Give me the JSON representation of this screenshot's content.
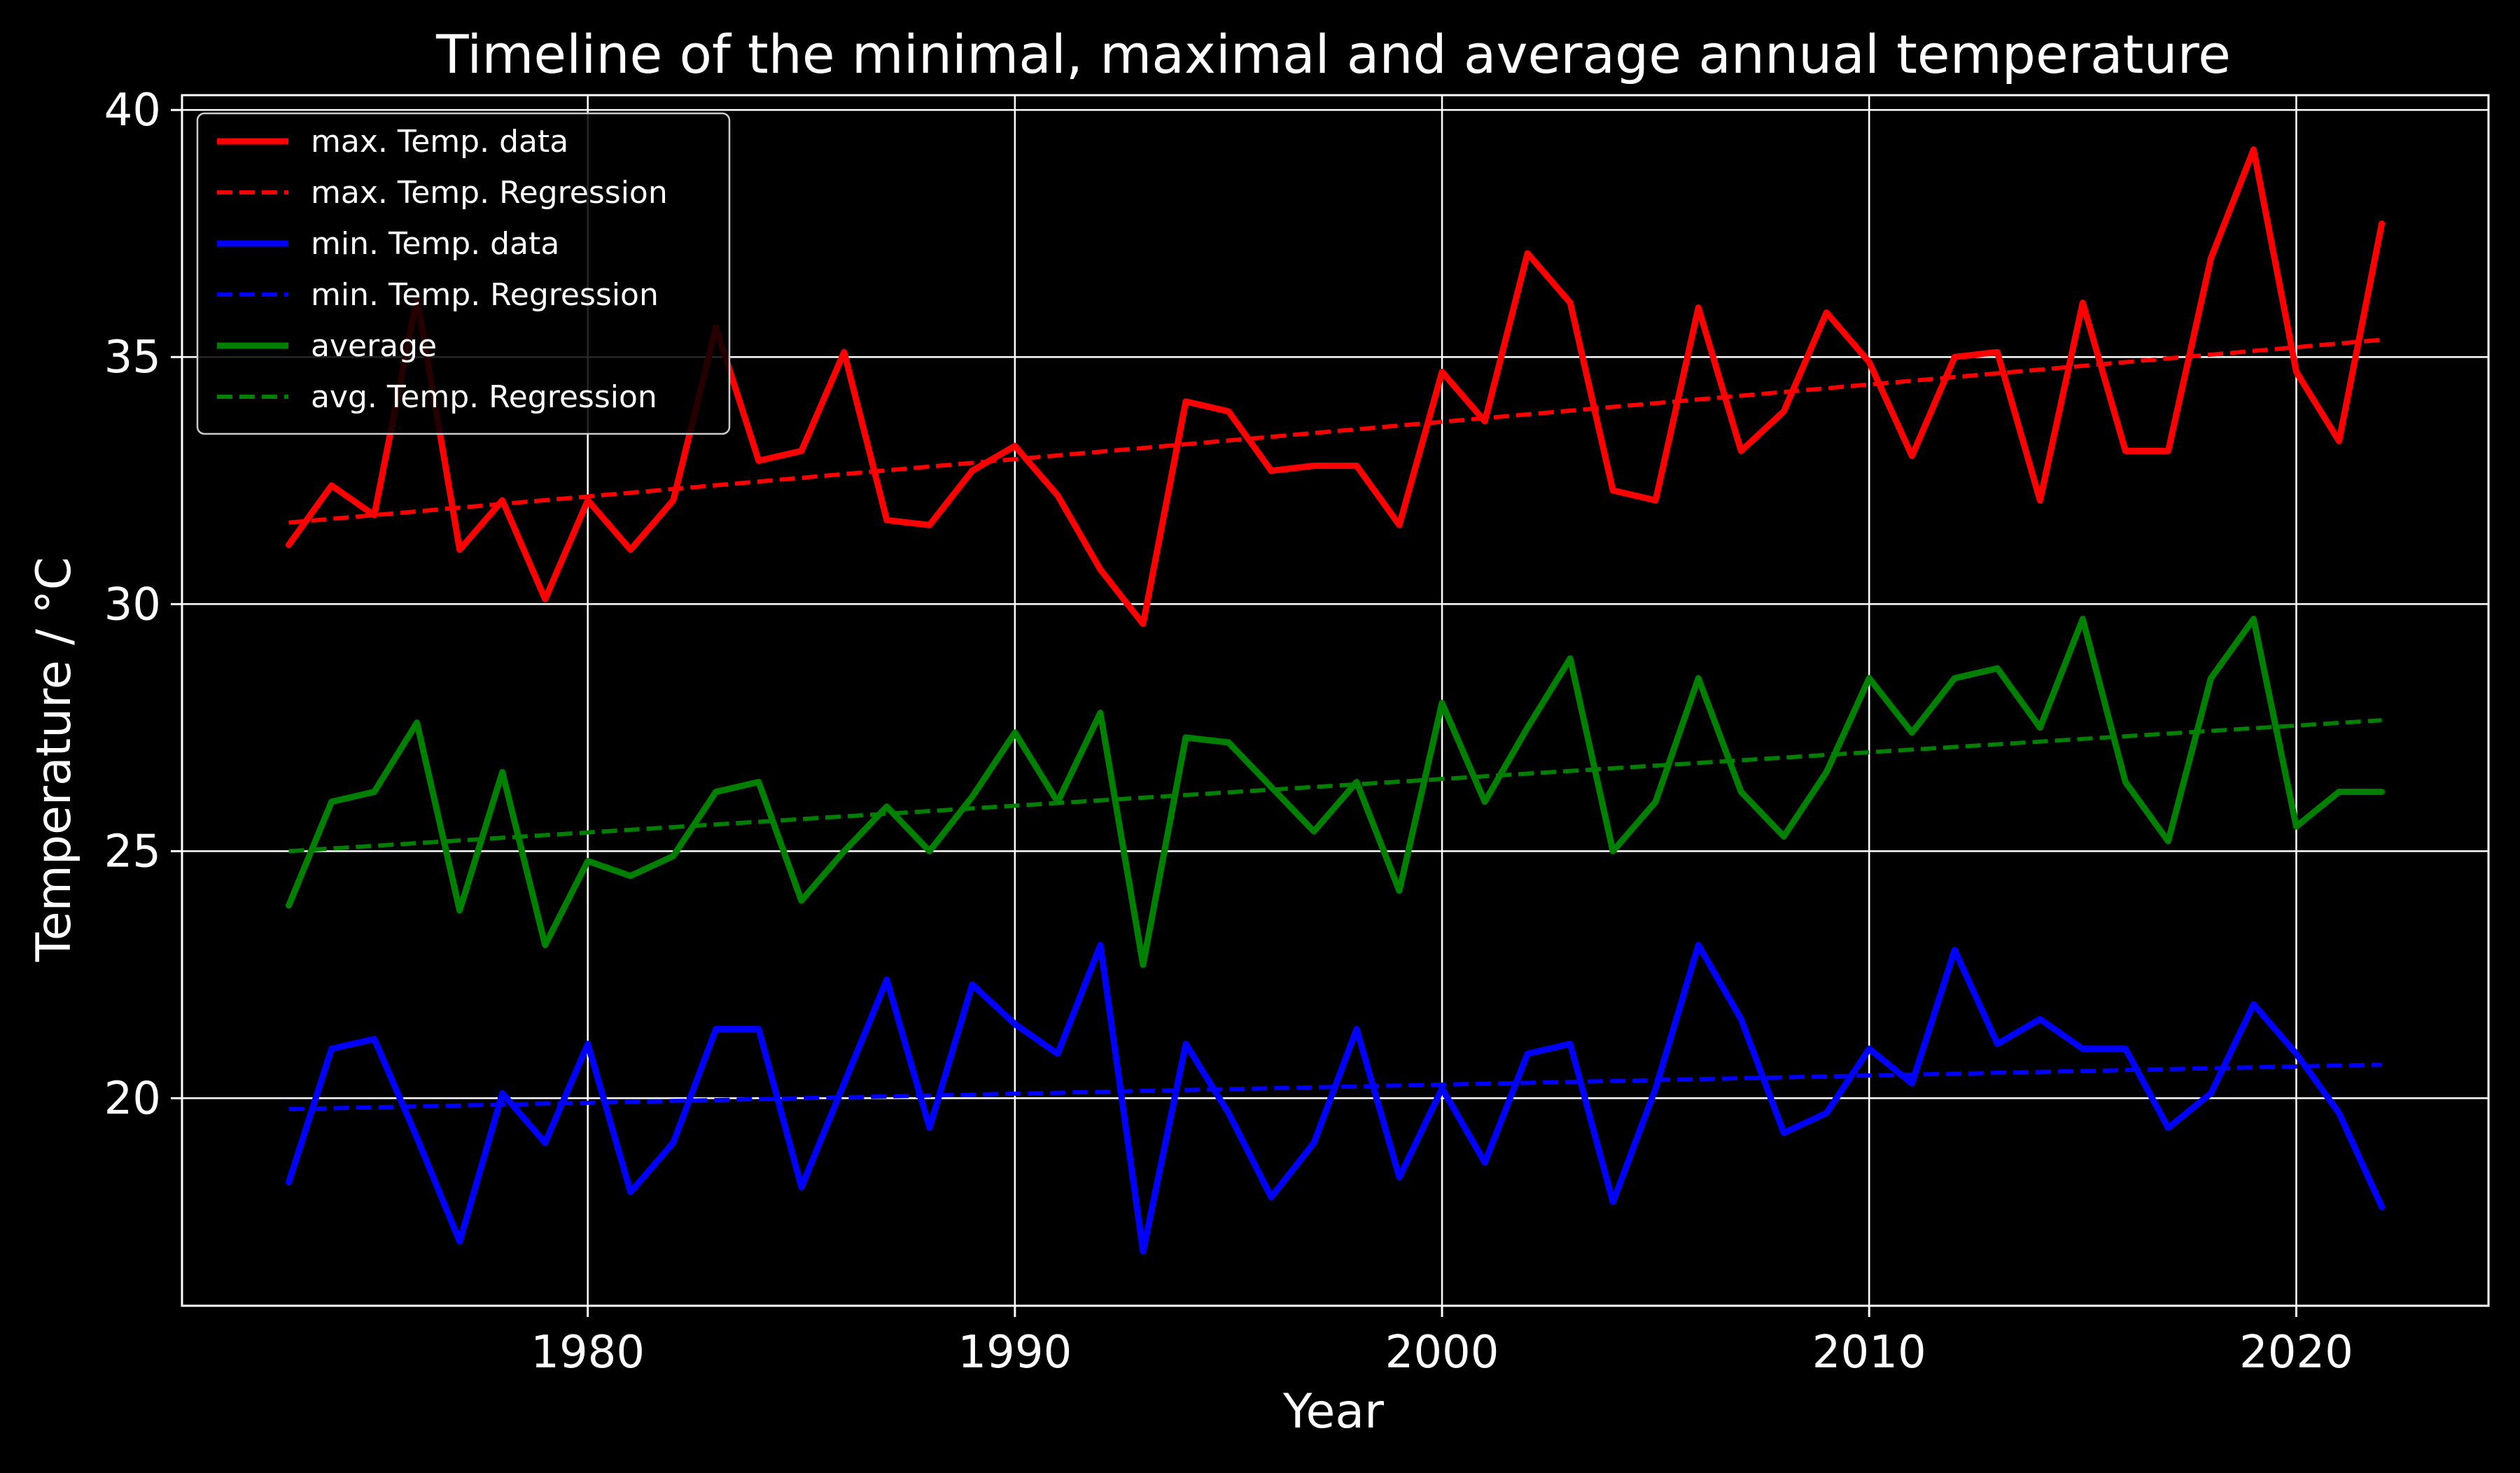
{
  "chart_data": {
    "type": "line",
    "title": "Timeline of the minimal, maximal and average annual temperature",
    "xlabel": "Year",
    "ylabel": "Temperature / °C",
    "xlim": [
      1970.5,
      2024.5
    ],
    "ylim": [
      15.8,
      40.3
    ],
    "xticks": [
      1980,
      1990,
      2000,
      2010,
      2020
    ],
    "yticks": [
      20,
      25,
      30,
      35,
      40
    ],
    "grid": true,
    "legend_position": "top-left",
    "background": "#000000",
    "foreground": "#ffffff",
    "x": [
      1973,
      1974,
      1975,
      1976,
      1977,
      1978,
      1979,
      1980,
      1981,
      1982,
      1983,
      1984,
      1985,
      1986,
      1987,
      1988,
      1989,
      1990,
      1991,
      1992,
      1993,
      1994,
      1995,
      1996,
      1997,
      1998,
      1999,
      2000,
      2001,
      2002,
      2003,
      2004,
      2005,
      2006,
      2007,
      2008,
      2009,
      2010,
      2011,
      2012,
      2013,
      2014,
      2015,
      2016,
      2017,
      2018,
      2019,
      2020,
      2021,
      2022
    ],
    "series": [
      {
        "name": "max. Temp. data",
        "color": "#ff0000",
        "style": "solid",
        "values": [
          31.2,
          32.4,
          31.8,
          36.2,
          31.1,
          32.1,
          30.1,
          32.1,
          31.1,
          32.1,
          35.6,
          32.9,
          33.1,
          35.1,
          31.7,
          31.6,
          32.7,
          33.2,
          32.2,
          30.7,
          29.6,
          34.1,
          33.9,
          32.7,
          32.8,
          32.8,
          31.6,
          34.7,
          33.7,
          37.1,
          36.1,
          32.3,
          32.1,
          36.0,
          33.1,
          33.9,
          35.9,
          34.9,
          33.0,
          35.0,
          35.1,
          32.1,
          36.1,
          33.1,
          33.1,
          37.0,
          39.2,
          34.7,
          33.3,
          37.7
        ]
      },
      {
        "name": "max. Temp. Regression",
        "color": "#ff0000",
        "style": "dashed",
        "x": [
          1973,
          2022
        ],
        "values": [
          31.65,
          35.35
        ]
      },
      {
        "name": "min. Temp. data",
        "color": "#0000ff",
        "style": "solid",
        "values": [
          18.3,
          21.0,
          21.2,
          19.2,
          17.1,
          20.1,
          19.1,
          21.1,
          18.1,
          19.1,
          21.4,
          21.4,
          18.2,
          20.3,
          22.4,
          19.4,
          22.3,
          21.5,
          20.9,
          23.1,
          16.9,
          21.1,
          19.7,
          18.0,
          19.1,
          21.4,
          18.4,
          20.2,
          18.7,
          20.9,
          21.1,
          17.9,
          20.2,
          23.1,
          21.6,
          19.3,
          19.7,
          21.0,
          20.3,
          23.0,
          21.1,
          21.6,
          21.0,
          21.0,
          19.4,
          20.1,
          21.9,
          20.9,
          19.7,
          17.8
        ]
      },
      {
        "name": "min. Temp. Regression",
        "color": "#0000ff",
        "style": "dashed",
        "x": [
          1973,
          2022
        ],
        "values": [
          19.78,
          20.68
        ]
      },
      {
        "name": "average",
        "color": "#008000",
        "style": "solid",
        "values": [
          23.9,
          26.0,
          26.2,
          27.6,
          23.8,
          26.6,
          23.1,
          24.8,
          24.5,
          24.9,
          26.2,
          26.4,
          24.0,
          25.0,
          25.9,
          25.0,
          26.1,
          27.4,
          26.0,
          27.8,
          22.7,
          27.3,
          27.2,
          26.3,
          25.4,
          26.4,
          24.2,
          28.0,
          26.0,
          27.5,
          28.9,
          25.0,
          26.0,
          28.5,
          26.2,
          25.3,
          26.6,
          28.5,
          27.4,
          28.5,
          28.7,
          27.5,
          29.7,
          26.4,
          25.2,
          28.5,
          29.7,
          25.5,
          26.2,
          26.2
        ]
      },
      {
        "name": "avg. Temp. Regression",
        "color": "#008000",
        "style": "dashed",
        "x": [
          1973,
          2022
        ],
        "values": [
          25.0,
          27.65
        ]
      }
    ]
  }
}
